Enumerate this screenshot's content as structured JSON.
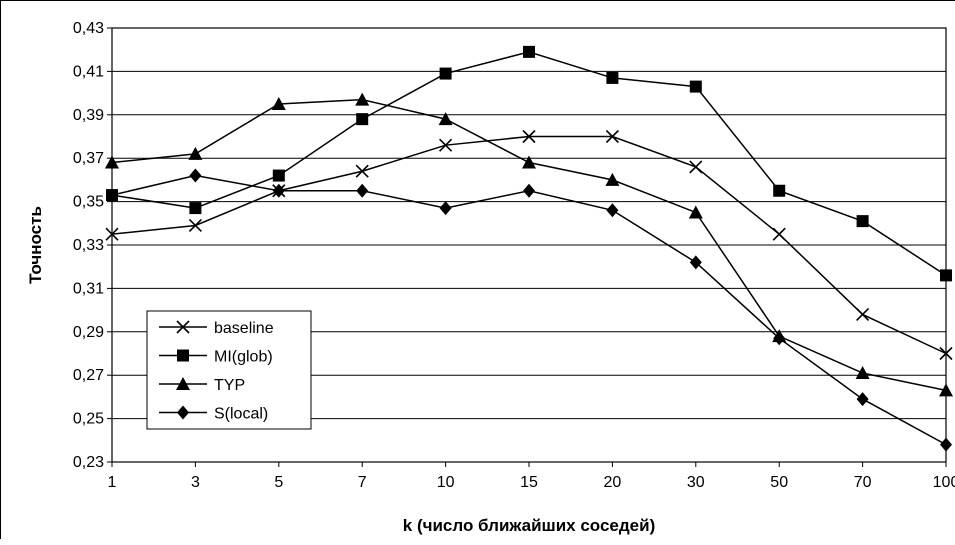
{
  "chart_data": {
    "type": "line",
    "title": "",
    "xlabel": "k (число ближайших соседей)",
    "ylabel": "Точность",
    "categories": [
      "1",
      "3",
      "5",
      "7",
      "10",
      "15",
      "20",
      "30",
      "50",
      "70",
      "100"
    ],
    "ylim": [
      0.23,
      0.43
    ],
    "yticks": [
      "0,23",
      "0,25",
      "0,27",
      "0,29",
      "0,31",
      "0,33",
      "0,35",
      "0,37",
      "0,39",
      "0,41",
      "0,43"
    ],
    "grid": "horizontal",
    "legend_position": "bottom-left",
    "series": [
      {
        "name": "baseline",
        "marker": "x-icon",
        "values": [
          0.335,
          0.339,
          0.355,
          0.364,
          0.376,
          0.38,
          0.38,
          0.366,
          0.335,
          0.298,
          0.28
        ]
      },
      {
        "name": "MI(glob)",
        "marker": "square-icon",
        "values": [
          0.353,
          0.347,
          0.362,
          0.388,
          0.409,
          0.419,
          0.407,
          0.403,
          0.355,
          0.341,
          0.316
        ]
      },
      {
        "name": "TYP",
        "marker": "triangle-icon",
        "values": [
          0.368,
          0.372,
          0.395,
          0.397,
          0.388,
          0.368,
          0.36,
          0.345,
          0.288,
          0.271,
          0.263
        ]
      },
      {
        "name": "S(local)",
        "marker": "diamond-icon",
        "values": [
          0.353,
          0.362,
          0.355,
          0.355,
          0.347,
          0.355,
          0.346,
          0.322,
          0.287,
          0.259,
          0.238
        ]
      }
    ],
    "colors": {
      "line": "#000000",
      "grid": "#000000",
      "background": "#ffffff"
    }
  }
}
